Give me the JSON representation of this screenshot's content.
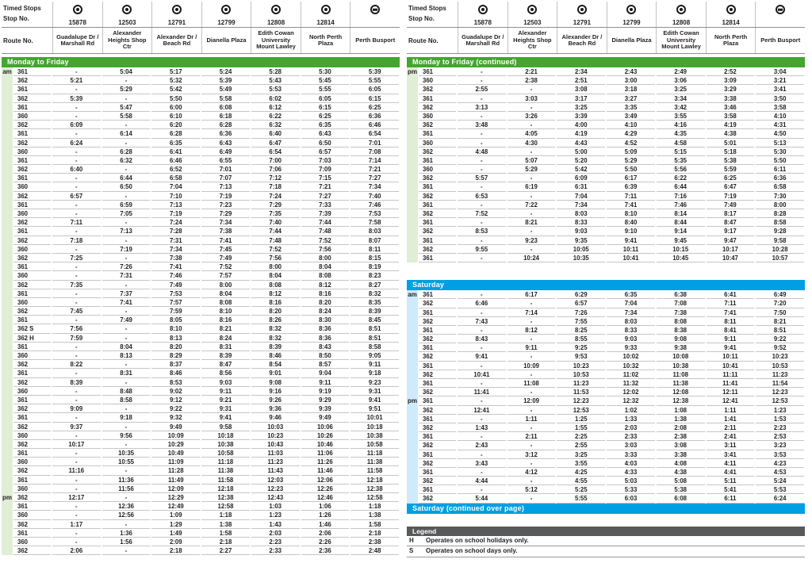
{
  "colors": {
    "weekday_green": "#44a52f",
    "weekday_green_light": "#dfeed5",
    "saturday_blue": "#009ee2",
    "saturday_blue_light": "#cfeafb",
    "legend_gray": "#58595b"
  },
  "stops_header": {
    "timed_stops_label": "Timed Stops",
    "stop_no_label": "Stop No.",
    "route_no_label": "Route No.",
    "stops": [
      {
        "stop_no": "15878",
        "name": "Guadalupe Dr / Marshall Rd",
        "icon": "timed-stop-icon"
      },
      {
        "stop_no": "12503",
        "name": "Alexander Heights Shop Ctr",
        "icon": "timed-stop-icon"
      },
      {
        "stop_no": "12791",
        "name": "Alexander Dr / Beach Rd",
        "icon": "timed-stop-icon"
      },
      {
        "stop_no": "12799",
        "name": "Dianella Plaza",
        "icon": "timed-stop-icon"
      },
      {
        "stop_no": "12808",
        "name": "Edith Cowan University Mount Lawley",
        "icon": "timed-stop-icon"
      },
      {
        "stop_no": "12814",
        "name": "North Perth Plaza",
        "icon": "timed-stop-icon"
      },
      {
        "stop_no": "",
        "name": "Perth Busport",
        "icon": "station-icon"
      }
    ]
  },
  "sections": {
    "weekday": {
      "title": "Monday to Friday",
      "theme": "green",
      "rows": [
        [
          "am",
          "361",
          "-",
          "5:04",
          "5:17",
          "5:24",
          "5:28",
          "5:30",
          "5:39"
        ],
        [
          "",
          "362",
          "5:21",
          "-",
          "5:32",
          "5:39",
          "5:43",
          "5:45",
          "5:55"
        ],
        [
          "",
          "361",
          "-",
          "5:29",
          "5:42",
          "5:49",
          "5:53",
          "5:55",
          "6:05"
        ],
        [
          "",
          "362",
          "5:39",
          "-",
          "5:50",
          "5:58",
          "6:02",
          "6:05",
          "6:15"
        ],
        [
          "",
          "361",
          "-",
          "5:47",
          "6:00",
          "6:08",
          "6:12",
          "6:15",
          "6:25"
        ],
        [
          "",
          "360",
          "-",
          "5:58",
          "6:10",
          "6:18",
          "6:22",
          "6:25",
          "6:36"
        ],
        [
          "",
          "362",
          "6:09",
          "-",
          "6:20",
          "6:28",
          "6:32",
          "6:35",
          "6:46"
        ],
        [
          "",
          "361",
          "-",
          "6:14",
          "6:28",
          "6:36",
          "6:40",
          "6:43",
          "6:54"
        ],
        [
          "",
          "362",
          "6:24",
          "-",
          "6:35",
          "6:43",
          "6:47",
          "6:50",
          "7:01"
        ],
        [
          "",
          "360",
          "-",
          "6:28",
          "6:41",
          "6:49",
          "6:54",
          "6:57",
          "7:08"
        ],
        [
          "",
          "361",
          "-",
          "6:32",
          "6:46",
          "6:55",
          "7:00",
          "7:03",
          "7:14"
        ],
        [
          "",
          "362",
          "6:40",
          "-",
          "6:52",
          "7:01",
          "7:06",
          "7:09",
          "7:21"
        ],
        [
          "",
          "361",
          "-",
          "6:44",
          "6:58",
          "7:07",
          "7:12",
          "7:15",
          "7:27"
        ],
        [
          "",
          "360",
          "-",
          "6:50",
          "7:04",
          "7:13",
          "7:18",
          "7:21",
          "7:34"
        ],
        [
          "",
          "362",
          "6:57",
          "-",
          "7:10",
          "7:19",
          "7:24",
          "7:27",
          "7:40"
        ],
        [
          "",
          "361",
          "-",
          "6:59",
          "7:13",
          "7:23",
          "7:29",
          "7:33",
          "7:46"
        ],
        [
          "",
          "360",
          "-",
          "7:05",
          "7:19",
          "7:29",
          "7:35",
          "7:39",
          "7:53"
        ],
        [
          "",
          "362",
          "7:11",
          "-",
          "7:24",
          "7:34",
          "7:40",
          "7:44",
          "7:58"
        ],
        [
          "",
          "361",
          "-",
          "7:13",
          "7:28",
          "7:38",
          "7:44",
          "7:48",
          "8:03"
        ],
        [
          "",
          "362",
          "7:18",
          "-",
          "7:31",
          "7:41",
          "7:48",
          "7:52",
          "8:07"
        ],
        [
          "",
          "360",
          "-",
          "7:19",
          "7:34",
          "7:45",
          "7:52",
          "7:56",
          "8:11"
        ],
        [
          "",
          "362",
          "7:25",
          "-",
          "7:38",
          "7:49",
          "7:56",
          "8:00",
          "8:15"
        ],
        [
          "",
          "361",
          "-",
          "7:26",
          "7:41",
          "7:52",
          "8:00",
          "8:04",
          "8:19"
        ],
        [
          "",
          "360",
          "-",
          "7:31",
          "7:46",
          "7:57",
          "8:04",
          "8:08",
          "8:23"
        ],
        [
          "",
          "362",
          "7:35",
          "-",
          "7:49",
          "8:00",
          "8:08",
          "8:12",
          "8:27"
        ],
        [
          "",
          "361",
          "-",
          "7:37",
          "7:53",
          "8:04",
          "8:12",
          "8:16",
          "8:32"
        ],
        [
          "",
          "360",
          "-",
          "7:41",
          "7:57",
          "8:08",
          "8:16",
          "8:20",
          "8:35"
        ],
        [
          "",
          "362",
          "7:45",
          "-",
          "7:59",
          "8:10",
          "8:20",
          "8:24",
          "8:39"
        ],
        [
          "",
          "361",
          "-",
          "7:49",
          "8:05",
          "8:16",
          "8:26",
          "8:30",
          "8:45"
        ],
        [
          "",
          "362 S",
          "7:56",
          "-",
          "8:10",
          "8:21",
          "8:32",
          "8:36",
          "8:51"
        ],
        [
          "",
          "362 H",
          "7:59",
          "-",
          "8:13",
          "8:24",
          "8:32",
          "8:36",
          "8:51"
        ],
        [
          "",
          "361",
          "-",
          "8:04",
          "8:20",
          "8:31",
          "8:39",
          "8:43",
          "8:58"
        ],
        [
          "",
          "360",
          "-",
          "8:13",
          "8:29",
          "8:39",
          "8:46",
          "8:50",
          "9:05"
        ],
        [
          "",
          "362",
          "8:22",
          "-",
          "8:37",
          "8:47",
          "8:54",
          "8:57",
          "9:11"
        ],
        [
          "",
          "361",
          "-",
          "8:31",
          "8:46",
          "8:56",
          "9:01",
          "9:04",
          "9:18"
        ],
        [
          "",
          "362",
          "8:39",
          "-",
          "8:53",
          "9:03",
          "9:08",
          "9:11",
          "9:23"
        ],
        [
          "",
          "360",
          "-",
          "8:48",
          "9:02",
          "9:11",
          "9:16",
          "9:19",
          "9:31"
        ],
        [
          "",
          "361",
          "-",
          "8:58",
          "9:12",
          "9:21",
          "9:26",
          "9:29",
          "9:41"
        ],
        [
          "",
          "362",
          "9:09",
          "-",
          "9:22",
          "9:31",
          "9:36",
          "9:39",
          "9:51"
        ],
        [
          "",
          "361",
          "-",
          "9:18",
          "9:32",
          "9:41",
          "9:46",
          "9:49",
          "10:01"
        ],
        [
          "",
          "362",
          "9:37",
          "-",
          "9:49",
          "9:58",
          "10:03",
          "10:06",
          "10:18"
        ],
        [
          "",
          "360",
          "-",
          "9:56",
          "10:09",
          "10:18",
          "10:23",
          "10:26",
          "10:38"
        ],
        [
          "",
          "362",
          "10:17",
          "-",
          "10:29",
          "10:38",
          "10:43",
          "10:46",
          "10:58"
        ],
        [
          "",
          "361",
          "-",
          "10:35",
          "10:49",
          "10:58",
          "11:03",
          "11:06",
          "11:18"
        ],
        [
          "",
          "360",
          "-",
          "10:55",
          "11:09",
          "11:18",
          "11:23",
          "11:26",
          "11:38"
        ],
        [
          "",
          "362",
          "11:16",
          "-",
          "11:28",
          "11:38",
          "11:43",
          "11:46",
          "11:58"
        ],
        [
          "",
          "361",
          "-",
          "11:36",
          "11:49",
          "11:58",
          "12:03",
          "12:06",
          "12:18"
        ],
        [
          "",
          "360",
          "-",
          "11:56",
          "12:09",
          "12:18",
          "12:23",
          "12:26",
          "12:38"
        ],
        [
          "pm",
          "362",
          "12:17",
          "-",
          "12:29",
          "12:38",
          "12:43",
          "12:46",
          "12:58"
        ],
        [
          "",
          "361",
          "-",
          "12:36",
          "12:49",
          "12:58",
          "1:03",
          "1:06",
          "1:18"
        ],
        [
          "",
          "360",
          "-",
          "12:56",
          "1:09",
          "1:18",
          "1:23",
          "1:26",
          "1:38"
        ],
        [
          "",
          "362",
          "1:17",
          "-",
          "1:29",
          "1:38",
          "1:43",
          "1:46",
          "1:58"
        ],
        [
          "",
          "361",
          "-",
          "1:36",
          "1:49",
          "1:58",
          "2:03",
          "2:06",
          "2:18"
        ],
        [
          "",
          "360",
          "-",
          "1:56",
          "2:09",
          "2:18",
          "2:23",
          "2:26",
          "2:38"
        ],
        [
          "",
          "362",
          "2:06",
          "-",
          "2:18",
          "2:27",
          "2:33",
          "2:36",
          "2:48"
        ]
      ]
    },
    "weekday_cont": {
      "title": "Monday to Friday (continued)",
      "theme": "green",
      "rows": [
        [
          "pm",
          "361",
          "-",
          "2:21",
          "2:34",
          "2:43",
          "2:49",
          "2:52",
          "3:04"
        ],
        [
          "",
          "360",
          "-",
          "2:38",
          "2:51",
          "3:00",
          "3:06",
          "3:09",
          "3:21"
        ],
        [
          "",
          "362",
          "2:55",
          "-",
          "3:08",
          "3:18",
          "3:25",
          "3:29",
          "3:41"
        ],
        [
          "",
          "361",
          "-",
          "3:03",
          "3:17",
          "3:27",
          "3:34",
          "3:38",
          "3:50"
        ],
        [
          "",
          "362",
          "3:13",
          "-",
          "3:25",
          "3:35",
          "3:42",
          "3:46",
          "3:58"
        ],
        [
          "",
          "360",
          "-",
          "3:26",
          "3:39",
          "3:49",
          "3:55",
          "3:58",
          "4:10"
        ],
        [
          "",
          "362",
          "3:48",
          "-",
          "4:00",
          "4:10",
          "4:16",
          "4:19",
          "4:31"
        ],
        [
          "",
          "361",
          "-",
          "4:05",
          "4:19",
          "4:29",
          "4:35",
          "4:38",
          "4:50"
        ],
        [
          "",
          "360",
          "-",
          "4:30",
          "4:43",
          "4:52",
          "4:58",
          "5:01",
          "5:13"
        ],
        [
          "",
          "362",
          "4:48",
          "-",
          "5:00",
          "5:09",
          "5:15",
          "5:18",
          "5:30"
        ],
        [
          "",
          "361",
          "-",
          "5:07",
          "5:20",
          "5:29",
          "5:35",
          "5:38",
          "5:50"
        ],
        [
          "",
          "360",
          "-",
          "5:29",
          "5:42",
          "5:50",
          "5:56",
          "5:59",
          "6:11"
        ],
        [
          "",
          "362",
          "5:57",
          "-",
          "6:09",
          "6:17",
          "6:22",
          "6:25",
          "6:36"
        ],
        [
          "",
          "361",
          "-",
          "6:19",
          "6:31",
          "6:39",
          "6:44",
          "6:47",
          "6:58"
        ],
        [
          "",
          "362",
          "6:53",
          "-",
          "7:04",
          "7:11",
          "7:16",
          "7:19",
          "7:30"
        ],
        [
          "",
          "361",
          "-",
          "7:22",
          "7:34",
          "7:41",
          "7:46",
          "7:49",
          "8:00"
        ],
        [
          "",
          "362",
          "7:52",
          "-",
          "8:03",
          "8:10",
          "8:14",
          "8:17",
          "8:28"
        ],
        [
          "",
          "361",
          "-",
          "8:21",
          "8:33",
          "8:40",
          "8:44",
          "8:47",
          "8:58"
        ],
        [
          "",
          "362",
          "8:53",
          "-",
          "9:03",
          "9:10",
          "9:14",
          "9:17",
          "9:28"
        ],
        [
          "",
          "361",
          "-",
          "9:23",
          "9:35",
          "9:41",
          "9:45",
          "9:47",
          "9:58"
        ],
        [
          "",
          "362",
          "9:55",
          "-",
          "10:05",
          "10:11",
          "10:15",
          "10:17",
          "10:28"
        ],
        [
          "",
          "361",
          "-",
          "10:24",
          "10:35",
          "10:41",
          "10:45",
          "10:47",
          "10:57"
        ]
      ]
    },
    "saturday": {
      "title": "Saturday",
      "theme": "blue",
      "continued_label": "Saturday (continued over page)",
      "rows": [
        [
          "am",
          "361",
          "-",
          "6:17",
          "6:29",
          "6:35",
          "6:38",
          "6:41",
          "6:49"
        ],
        [
          "",
          "362",
          "6:46",
          "-",
          "6:57",
          "7:04",
          "7:08",
          "7:11",
          "7:20"
        ],
        [
          "",
          "361",
          "-",
          "7:14",
          "7:26",
          "7:34",
          "7:38",
          "7:41",
          "7:50"
        ],
        [
          "",
          "362",
          "7:43",
          "-",
          "7:55",
          "8:03",
          "8:08",
          "8:11",
          "8:21"
        ],
        [
          "",
          "361",
          "-",
          "8:12",
          "8:25",
          "8:33",
          "8:38",
          "8:41",
          "8:51"
        ],
        [
          "",
          "362",
          "8:43",
          "-",
          "8:55",
          "9:03",
          "9:08",
          "9:11",
          "9:22"
        ],
        [
          "",
          "361",
          "-",
          "9:11",
          "9:25",
          "9:33",
          "9:38",
          "9:41",
          "9:52"
        ],
        [
          "",
          "362",
          "9:41",
          "-",
          "9:53",
          "10:02",
          "10:08",
          "10:11",
          "10:23"
        ],
        [
          "",
          "361",
          "-",
          "10:09",
          "10:23",
          "10:32",
          "10:38",
          "10:41",
          "10:53"
        ],
        [
          "",
          "362",
          "10:41",
          "-",
          "10:53",
          "11:02",
          "11:08",
          "11:11",
          "11:23"
        ],
        [
          "",
          "361",
          "-",
          "11:08",
          "11:23",
          "11:32",
          "11:38",
          "11:41",
          "11:54"
        ],
        [
          "",
          "362",
          "11:41",
          "-",
          "11:53",
          "12:02",
          "12:08",
          "12:11",
          "12:23"
        ],
        [
          "pm",
          "361",
          "-",
          "12:09",
          "12:23",
          "12:32",
          "12:38",
          "12:41",
          "12:53"
        ],
        [
          "",
          "362",
          "12:41",
          "-",
          "12:53",
          "1:02",
          "1:08",
          "1:11",
          "1:23"
        ],
        [
          "",
          "361",
          "-",
          "1:11",
          "1:25",
          "1:33",
          "1:38",
          "1:41",
          "1:53"
        ],
        [
          "",
          "362",
          "1:43",
          "-",
          "1:55",
          "2:03",
          "2:08",
          "2:11",
          "2:23"
        ],
        [
          "",
          "361",
          "-",
          "2:11",
          "2:25",
          "2:33",
          "2:38",
          "2:41",
          "2:53"
        ],
        [
          "",
          "362",
          "2:43",
          "-",
          "2:55",
          "3:03",
          "3:08",
          "3:11",
          "3:23"
        ],
        [
          "",
          "361",
          "-",
          "3:12",
          "3:25",
          "3:33",
          "3:38",
          "3:41",
          "3:53"
        ],
        [
          "",
          "362",
          "3:43",
          "-",
          "3:55",
          "4:03",
          "4:08",
          "4:11",
          "4:23"
        ],
        [
          "",
          "361",
          "-",
          "4:12",
          "4:25",
          "4:33",
          "4:38",
          "4:41",
          "4:53"
        ],
        [
          "",
          "362",
          "4:44",
          "-",
          "4:55",
          "5:03",
          "5:08",
          "5:11",
          "5:24"
        ],
        [
          "",
          "361",
          "-",
          "5:12",
          "5:25",
          "5:33",
          "5:38",
          "5:41",
          "5:53"
        ],
        [
          "",
          "362",
          "5:44",
          "-",
          "5:55",
          "6:03",
          "6:08",
          "6:11",
          "6:24"
        ]
      ]
    }
  },
  "legend": {
    "title": "Legend",
    "items": [
      {
        "key": "H",
        "text": "Operates on school holidays only."
      },
      {
        "key": "S",
        "text": "Operates on school days only."
      }
    ]
  }
}
